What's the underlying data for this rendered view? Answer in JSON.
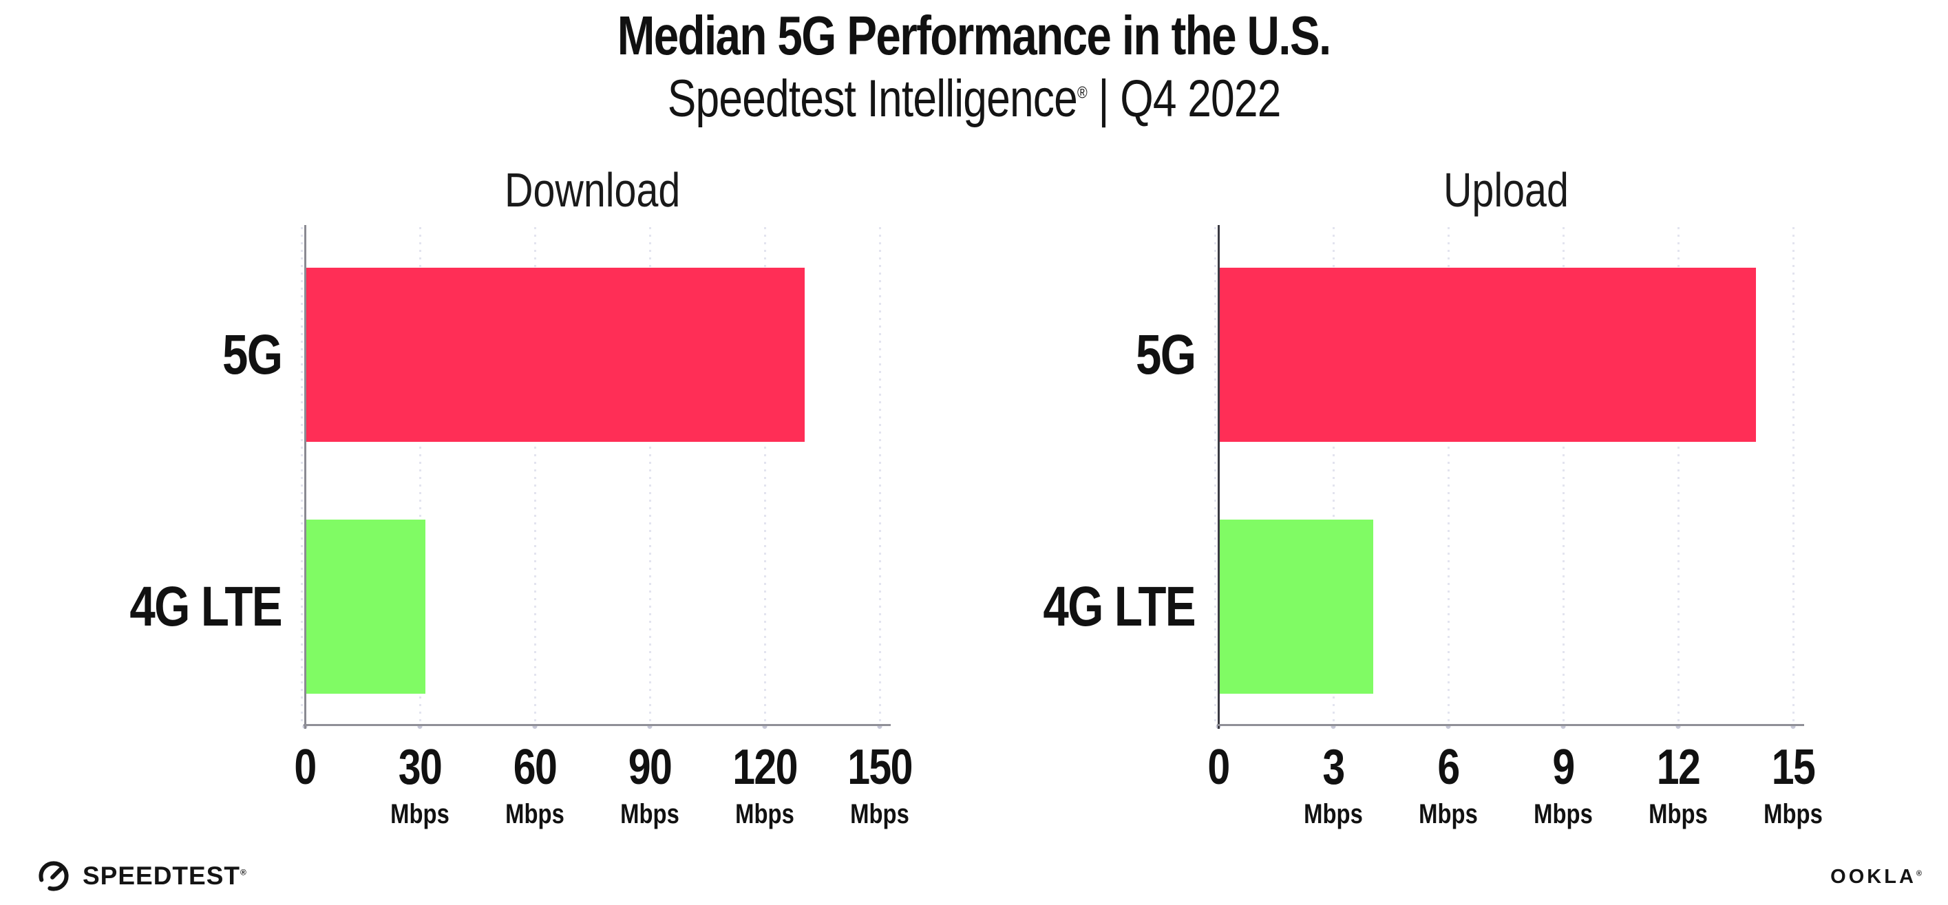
{
  "title": "Median 5G Performance in the U.S.",
  "subtitle": {
    "brand": "Speedtest Intelligence",
    "reg": "®",
    "period": " | Q4 2022"
  },
  "footer": {
    "speedtest_wordmark": "SPEEDTEST",
    "speedtest_reg": "®",
    "speedtest_icon": "gauge-icon",
    "ookla_wordmark": "OOKLA",
    "ookla_reg": "®"
  },
  "colors": {
    "bar_5g": "#ff2e56",
    "bar_4g_lte": "#80fb64",
    "gridline": "#e3e4ef",
    "axis_line": "#8f8f97",
    "tick_dot": "#c6c7d6",
    "text": "#111111"
  },
  "chart_data": [
    {
      "type": "bar",
      "orientation": "horizontal",
      "title": "Download",
      "categories": [
        "5G",
        "4G LTE"
      ],
      "values": [
        130,
        31
      ],
      "unit": "Mbps",
      "bar_colors": [
        "#ff2e56",
        "#80fb64"
      ],
      "xlim": [
        0,
        150
      ],
      "xticks": [
        0,
        30,
        60,
        90,
        120,
        150
      ],
      "xtick_unit": "Mbps",
      "grid": "vertical-dotted",
      "legend": "none",
      "spine_color": "#8a8a92"
    },
    {
      "type": "bar",
      "orientation": "horizontal",
      "title": "Upload",
      "categories": [
        "5G",
        "4G LTE"
      ],
      "values": [
        14,
        4
      ],
      "unit": "Mbps",
      "bar_colors": [
        "#ff2e56",
        "#80fb64"
      ],
      "xlim": [
        0,
        15
      ],
      "xticks": [
        0,
        3,
        6,
        9,
        12,
        15
      ],
      "xtick_unit": "Mbps",
      "grid": "vertical-dotted",
      "legend": "none",
      "spine_color": "#3a3a42"
    }
  ]
}
